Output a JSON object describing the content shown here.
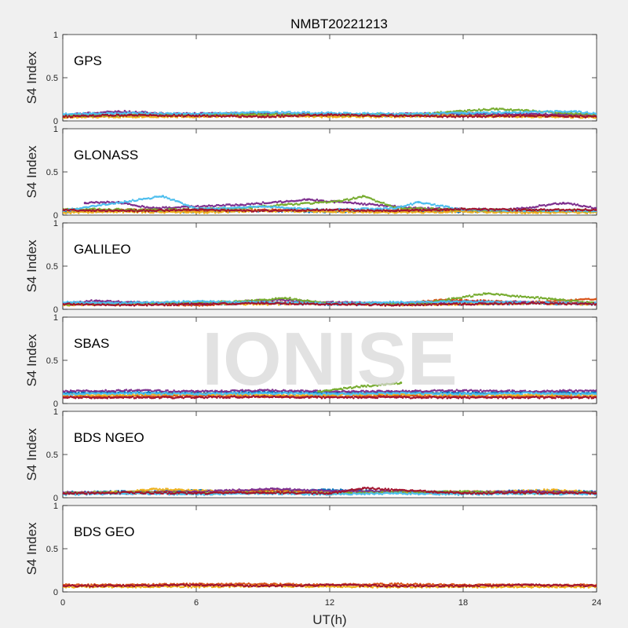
{
  "chart_data": {
    "type": "scatter",
    "title": "NMBT20221213",
    "xlabel": "UT(h)",
    "ylabel": "S4 Index",
    "xlim": [
      0,
      24
    ],
    "ylim": [
      0,
      1
    ],
    "xticks": [
      0,
      6,
      12,
      18,
      24
    ],
    "yticks": [
      0,
      0.5,
      1
    ],
    "ytick_labels": [
      "0",
      "0.5",
      "1"
    ],
    "grid": false,
    "watermark": "IONISE",
    "colors": [
      "#0072BD",
      "#D95319",
      "#EDB120",
      "#7E2F8E",
      "#77AC30",
      "#4DBEEE",
      "#A2142F"
    ],
    "panels": [
      {
        "label": "GPS",
        "series": [
          {
            "color": "#0072BD",
            "x": [
              0,
              3,
              6,
              9,
              12,
              15,
              18,
              21,
              24
            ],
            "y": [
              0.06,
              0.07,
              0.06,
              0.08,
              0.07,
              0.06,
              0.07,
              0.06,
              0.06
            ]
          },
          {
            "color": "#D95319",
            "x": [
              0,
              3,
              6,
              9,
              12,
              15,
              18,
              21,
              24
            ],
            "y": [
              0.05,
              0.06,
              0.07,
              0.06,
              0.06,
              0.07,
              0.06,
              0.07,
              0.05
            ]
          },
          {
            "color": "#EDB120",
            "x": [
              0,
              3,
              6,
              9,
              12,
              15,
              18,
              21,
              24
            ],
            "y": [
              0.04,
              0.05,
              0.05,
              0.06,
              0.05,
              0.05,
              0.06,
              0.05,
              0.04
            ]
          },
          {
            "color": "#7E2F8E",
            "x": [
              0,
              2.5,
              5,
              8,
              11,
              14,
              17,
              20,
              24
            ],
            "y": [
              0.07,
              0.11,
              0.08,
              0.09,
              0.08,
              0.07,
              0.09,
              0.08,
              0.07
            ]
          },
          {
            "color": "#77AC30",
            "x": [
              0,
              4,
              8,
              12,
              16,
              19.5,
              24
            ],
            "y": [
              0.06,
              0.07,
              0.08,
              0.07,
              0.08,
              0.14,
              0.07
            ]
          },
          {
            "color": "#4DBEEE",
            "x": [
              0,
              3,
              6,
              9,
              12,
              15,
              18,
              23,
              24
            ],
            "y": [
              0.08,
              0.09,
              0.08,
              0.1,
              0.09,
              0.08,
              0.09,
              0.11,
              0.08
            ]
          },
          {
            "color": "#A2142F",
            "x": [
              0,
              3,
              6,
              9,
              12,
              15,
              18,
              21,
              24
            ],
            "y": [
              0.05,
              0.07,
              0.06,
              0.05,
              0.07,
              0.06,
              0.05,
              0.06,
              0.05
            ]
          }
        ]
      },
      {
        "label": "GLONASS",
        "series": [
          {
            "color": "#0072BD",
            "x": [
              0,
              3,
              6,
              9,
              12,
              15,
              18,
              21,
              24
            ],
            "y": [
              0.04,
              0.05,
              0.04,
              0.05,
              0.04,
              0.05,
              0.04,
              0.05,
              0.04
            ]
          },
          {
            "color": "#D95319",
            "x": [
              0,
              3,
              6,
              9,
              12,
              15,
              18,
              21,
              24
            ],
            "y": [
              0.05,
              0.06,
              0.05,
              0.06,
              0.05,
              0.06,
              0.05,
              0.05,
              0.05
            ]
          },
          {
            "color": "#EDB120",
            "x": [
              0,
              3,
              6,
              9,
              12,
              15,
              18,
              21,
              24
            ],
            "y": [
              0.03,
              0.04,
              0.03,
              0.05,
              0.04,
              0.03,
              0.04,
              0.03,
              0.03
            ]
          },
          {
            "color": "#7E2F8E",
            "x": [
              1,
              2.5,
              4,
              8,
              11,
              16,
              20,
              22.5,
              24
            ],
            "y": [
              0.14,
              0.15,
              0.08,
              0.12,
              0.18,
              0.08,
              0.06,
              0.14,
              0.08
            ]
          },
          {
            "color": "#77AC30",
            "x": [
              0,
              4,
              8,
              10,
              12.5,
              13.5,
              15,
              19,
              24
            ],
            "y": [
              0.07,
              0.06,
              0.08,
              0.12,
              0.16,
              0.22,
              0.08,
              0.06,
              0.05
            ]
          },
          {
            "color": "#4DBEEE",
            "x": [
              0,
              4.5,
              6,
              9,
              12,
              15,
              16,
              18,
              24
            ],
            "y": [
              0.05,
              0.22,
              0.07,
              0.1,
              0.06,
              0.08,
              0.15,
              0.06,
              0.05
            ]
          },
          {
            "color": "#A2142F",
            "x": [
              0,
              3,
              6,
              9,
              12,
              15,
              18,
              21,
              24
            ],
            "y": [
              0.06,
              0.05,
              0.06,
              0.05,
              0.06,
              0.05,
              0.07,
              0.06,
              0.06
            ]
          }
        ]
      },
      {
        "label": "GALILEO",
        "series": [
          {
            "color": "#0072BD",
            "x": [
              0,
              3,
              6,
              9,
              12,
              15,
              18,
              21,
              24
            ],
            "y": [
              0.06,
              0.08,
              0.06,
              0.07,
              0.06,
              0.07,
              0.06,
              0.07,
              0.06
            ]
          },
          {
            "color": "#D95319",
            "x": [
              0,
              3,
              6,
              9,
              12,
              15,
              17,
              21,
              24
            ],
            "y": [
              0.07,
              0.06,
              0.05,
              0.08,
              0.07,
              0.06,
              0.11,
              0.08,
              0.12
            ]
          },
          {
            "color": "#EDB120",
            "x": [
              0,
              3,
              6,
              9,
              12,
              15,
              18,
              21,
              24
            ],
            "y": [
              0.05,
              0.06,
              0.07,
              0.06,
              0.07,
              0.05,
              0.06,
              0.07,
              0.06
            ]
          },
          {
            "color": "#7E2F8E",
            "x": [
              0,
              1.5,
              3,
              6,
              9.5,
              12,
              15,
              18,
              24
            ],
            "y": [
              0.07,
              0.1,
              0.08,
              0.06,
              0.11,
              0.08,
              0.07,
              0.09,
              0.07
            ]
          },
          {
            "color": "#77AC30",
            "x": [
              0,
              4,
              8,
              10,
              12,
              16,
              19,
              22,
              24
            ],
            "y": [
              0.06,
              0.07,
              0.09,
              0.13,
              0.07,
              0.06,
              0.18,
              0.12,
              0.07
            ]
          },
          {
            "color": "#4DBEEE",
            "x": [
              0,
              3,
              6,
              9,
              12,
              15,
              18,
              21,
              24
            ],
            "y": [
              0.08,
              0.07,
              0.09,
              0.08,
              0.07,
              0.08,
              0.09,
              0.08,
              0.07
            ]
          },
          {
            "color": "#A2142F",
            "x": [
              0,
              3,
              6,
              9,
              12,
              15,
              18,
              21,
              24
            ],
            "y": [
              0.06,
              0.05,
              0.06,
              0.07,
              0.06,
              0.05,
              0.06,
              0.07,
              0.06
            ]
          }
        ]
      },
      {
        "label": "SBAS",
        "series": [
          {
            "color": "#0072BD",
            "x": [
              0,
              3,
              6,
              9,
              12,
              15,
              18,
              21,
              24
            ],
            "y": [
              0.12,
              0.13,
              0.12,
              0.13,
              0.12,
              0.13,
              0.12,
              0.13,
              0.12
            ]
          },
          {
            "color": "#D95319",
            "x": [
              0,
              3,
              6,
              9,
              12,
              15,
              18,
              21,
              24
            ],
            "y": [
              0.08,
              0.08,
              0.09,
              0.08,
              0.08,
              0.09,
              0.08,
              0.08,
              0.08
            ]
          },
          {
            "color": "#EDB120",
            "x": [
              0,
              3,
              6,
              9,
              12,
              15,
              18,
              21,
              24
            ],
            "y": [
              0.1,
              0.1,
              0.11,
              0.1,
              0.1,
              0.11,
              0.1,
              0.1,
              0.1
            ]
          },
          {
            "color": "#7E2F8E",
            "x": [
              0,
              3,
              6,
              9,
              12,
              15,
              18,
              21,
              24
            ],
            "y": [
              0.14,
              0.15,
              0.14,
              0.15,
              0.14,
              0.14,
              0.15,
              0.14,
              0.15
            ]
          },
          {
            "color": "#77AC30",
            "x": [
              11.5,
              12.5,
              13.5,
              14.5,
              15.2
            ],
            "y": [
              0.14,
              0.17,
              0.2,
              0.22,
              0.24
            ]
          },
          {
            "color": "#4DBEEE",
            "x": [
              0,
              3,
              6,
              9,
              12,
              15,
              18,
              21,
              24
            ],
            "y": [
              0.11,
              0.12,
              0.11,
              0.12,
              0.11,
              0.12,
              0.11,
              0.12,
              0.11
            ]
          },
          {
            "color": "#A2142F",
            "x": [
              0,
              3,
              6,
              9,
              12,
              15,
              18,
              21,
              24
            ],
            "y": [
              0.07,
              0.07,
              0.07,
              0.08,
              0.07,
              0.07,
              0.07,
              0.07,
              0.07
            ]
          }
        ]
      },
      {
        "label": "BDS NGEO",
        "series": [
          {
            "color": "#0072BD",
            "x": [
              0,
              3,
              6,
              9,
              12,
              15,
              18,
              21,
              24
            ],
            "y": [
              0.06,
              0.07,
              0.08,
              0.07,
              0.09,
              0.07,
              0.06,
              0.08,
              0.07
            ]
          },
          {
            "color": "#D95319",
            "x": [
              0,
              3,
              6,
              9,
              12,
              15,
              18,
              21,
              24
            ],
            "y": [
              0.05,
              0.06,
              0.07,
              0.08,
              0.07,
              0.06,
              0.07,
              0.06,
              0.05
            ]
          },
          {
            "color": "#EDB120",
            "x": [
              0,
              3,
              4,
              9,
              12,
              15,
              18,
              22,
              24
            ],
            "y": [
              0.05,
              0.07,
              0.1,
              0.06,
              0.07,
              0.06,
              0.05,
              0.09,
              0.06
            ]
          },
          {
            "color": "#7E2F8E",
            "x": [
              0,
              3,
              6,
              9.5,
              12,
              15,
              18,
              21,
              24
            ],
            "y": [
              0.06,
              0.05,
              0.07,
              0.1,
              0.08,
              0.07,
              0.06,
              0.07,
              0.06
            ]
          },
          {
            "color": "#77AC30",
            "x": [
              0,
              3,
              6,
              9,
              12,
              15,
              18,
              21,
              24
            ],
            "y": [
              0.05,
              0.06,
              0.05,
              0.06,
              0.05,
              0.06,
              0.07,
              0.05,
              0.06
            ]
          },
          {
            "color": "#4DBEEE",
            "x": [
              0,
              3,
              6,
              9,
              12,
              15,
              18,
              21,
              24
            ],
            "y": [
              0.04,
              0.05,
              0.04,
              0.05,
              0.04,
              0.05,
              0.04,
              0.05,
              0.04
            ]
          },
          {
            "color": "#A2142F",
            "x": [
              0,
              3,
              6,
              9,
              12,
              13.5,
              18,
              21,
              24
            ],
            "y": [
              0.05,
              0.06,
              0.05,
              0.06,
              0.05,
              0.11,
              0.05,
              0.06,
              0.05
            ]
          }
        ]
      },
      {
        "label": "BDS GEO",
        "series": [
          {
            "color": "#D95319",
            "x": [
              0,
              3,
              6,
              9,
              12,
              15,
              18,
              21,
              24
            ],
            "y": [
              0.08,
              0.08,
              0.09,
              0.09,
              0.08,
              0.09,
              0.08,
              0.08,
              0.08
            ]
          },
          {
            "color": "#EDB120",
            "x": [
              0,
              3,
              6,
              9,
              12,
              15,
              18,
              21,
              24
            ],
            "y": [
              0.06,
              0.06,
              0.06,
              0.07,
              0.06,
              0.06,
              0.06,
              0.06,
              0.06
            ]
          },
          {
            "color": "#A2142F",
            "x": [
              0,
              3,
              6,
              9,
              12,
              15,
              18,
              21,
              24
            ],
            "y": [
              0.07,
              0.07,
              0.08,
              0.07,
              0.08,
              0.07,
              0.07,
              0.08,
              0.07
            ]
          }
        ]
      }
    ]
  }
}
